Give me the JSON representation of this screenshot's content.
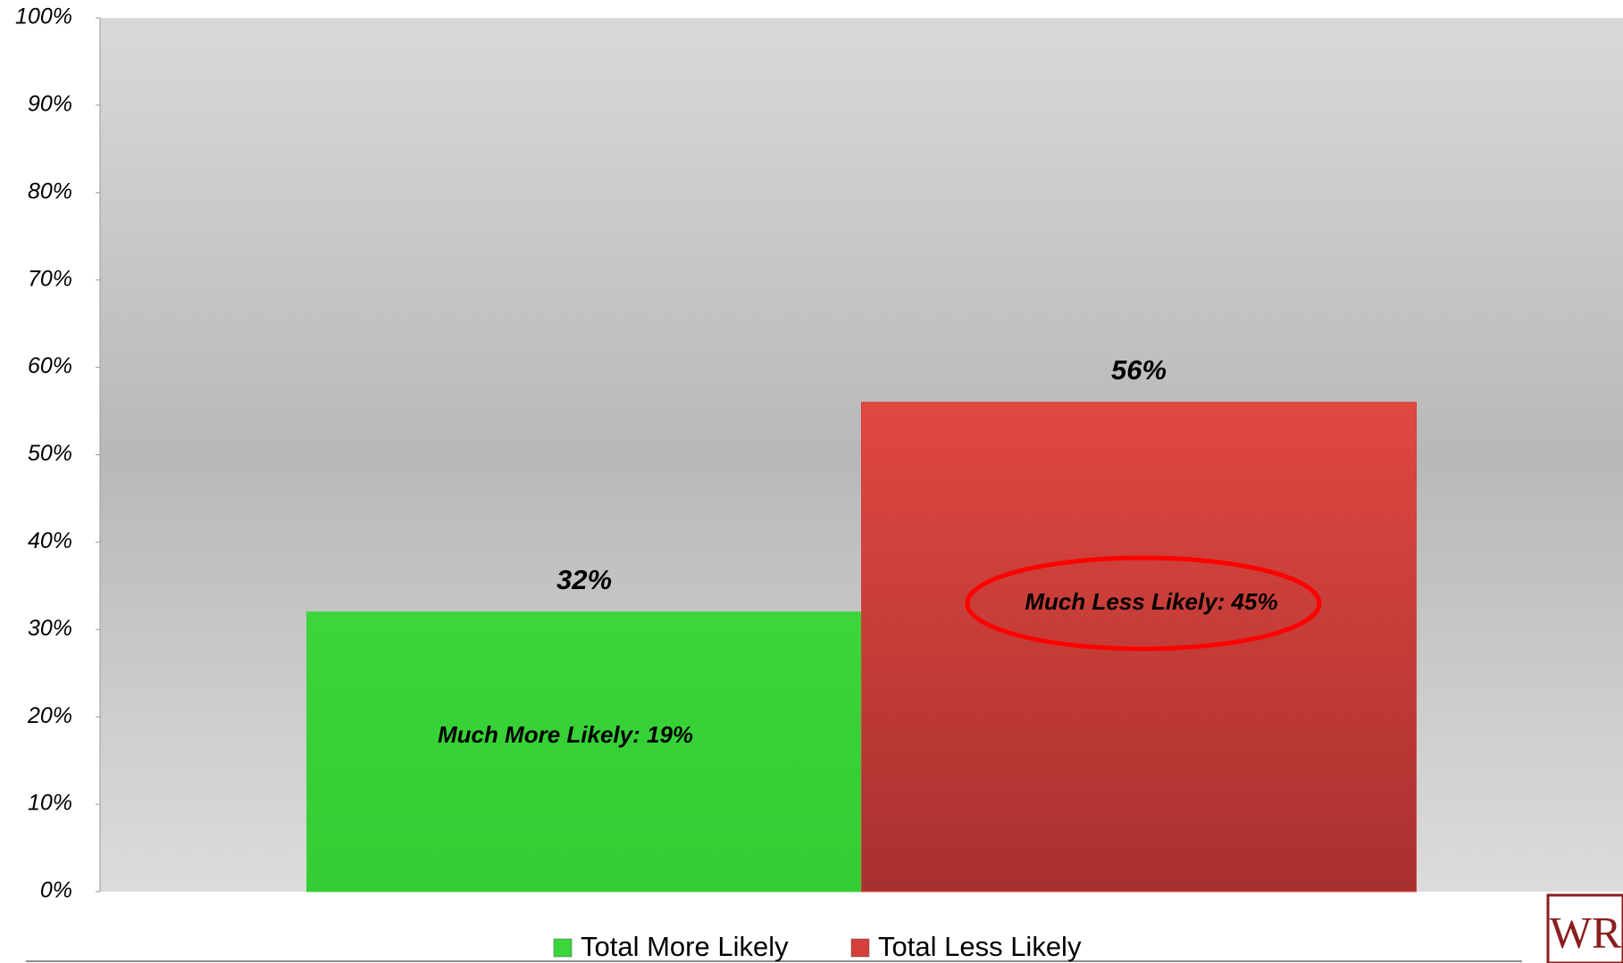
{
  "chart_data": {
    "type": "bar",
    "categories": [
      null
    ],
    "series": [
      {
        "name": "Total More Likely",
        "color": "#3ad63a",
        "values": [
          32
        ],
        "value_labels": [
          "32%"
        ]
      },
      {
        "name": "Total Less Likely",
        "color": "#d43f3a",
        "values": [
          56
        ],
        "value_labels": [
          "56%"
        ]
      }
    ],
    "annotations": [
      "Much More Likely: 19%",
      "Much Less Likely: 45%"
    ],
    "ylim": [
      0,
      100
    ],
    "yticks": [
      {
        "value": 0,
        "label": "0%"
      },
      {
        "value": 10,
        "label": "10%"
      },
      {
        "value": 20,
        "label": "20%"
      },
      {
        "value": 30,
        "label": "30%"
      },
      {
        "value": 40,
        "label": "40%"
      },
      {
        "value": 50,
        "label": "50%"
      },
      {
        "value": 60,
        "label": "60%"
      },
      {
        "value": 70,
        "label": "70%"
      },
      {
        "value": 80,
        "label": "80%"
      },
      {
        "value": 90,
        "label": "90%"
      },
      {
        "value": 100,
        "label": "100%"
      }
    ],
    "legend": "bottom",
    "logo": "WR"
  }
}
